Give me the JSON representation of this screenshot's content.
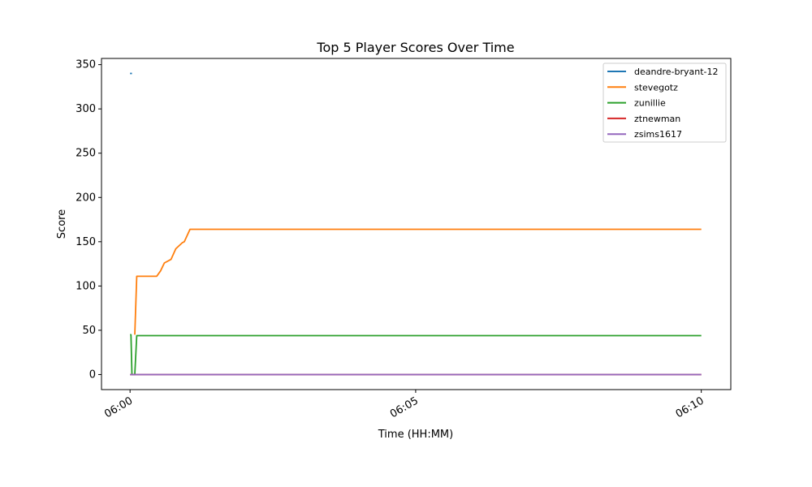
{
  "chart_data": {
    "type": "line",
    "title": "Top 5 Player Scores Over Time",
    "xlabel": "Time (HH:MM)",
    "ylabel": "Score",
    "xlim": [
      "05:59:30",
      "06:10:31"
    ],
    "ylim": [
      -17,
      357
    ],
    "xticks": [
      {
        "value": "06:00:00",
        "label": "06:00"
      },
      {
        "value": "06:05:00",
        "label": "06:05"
      },
      {
        "value": "06:10:00",
        "label": "06:10"
      }
    ],
    "yticks": [
      0,
      50,
      100,
      150,
      200,
      250,
      300,
      350
    ],
    "grid": false,
    "legend_position": "top-right",
    "series": [
      {
        "name": "deandre-bryant-12",
        "color": "#1f77b4",
        "points": [
          [
            "06:00:00",
            340
          ],
          [
            "06:00:02",
            340
          ]
        ]
      },
      {
        "name": "stevegotz",
        "color": "#ff7f0e",
        "points": [
          [
            "06:00:05",
            45
          ],
          [
            "06:00:07",
            111
          ],
          [
            "06:00:28",
            111
          ],
          [
            "06:00:32",
            117
          ],
          [
            "06:00:36",
            126
          ],
          [
            "06:00:43",
            130
          ],
          [
            "06:00:48",
            142
          ],
          [
            "06:00:55",
            149
          ],
          [
            "06:00:57",
            150
          ],
          [
            "06:01:03",
            164
          ],
          [
            "06:10:00",
            164
          ]
        ]
      },
      {
        "name": "zunillie",
        "color": "#2ca02c",
        "points": [
          [
            "06:00:00",
            45
          ],
          [
            "06:00:01",
            45
          ],
          [
            "06:00:02",
            0
          ],
          [
            "06:00:05",
            0
          ],
          [
            "06:00:07",
            44
          ],
          [
            "06:10:00",
            44
          ]
        ]
      },
      {
        "name": "ztnewman",
        "color": "#d62728",
        "points": [
          [
            "06:00:00",
            0
          ],
          [
            "06:10:00",
            0
          ]
        ]
      },
      {
        "name": "zsims1617",
        "color": "#9467bd",
        "points": [
          [
            "06:00:00",
            0
          ],
          [
            "06:10:00",
            0
          ]
        ]
      }
    ]
  }
}
